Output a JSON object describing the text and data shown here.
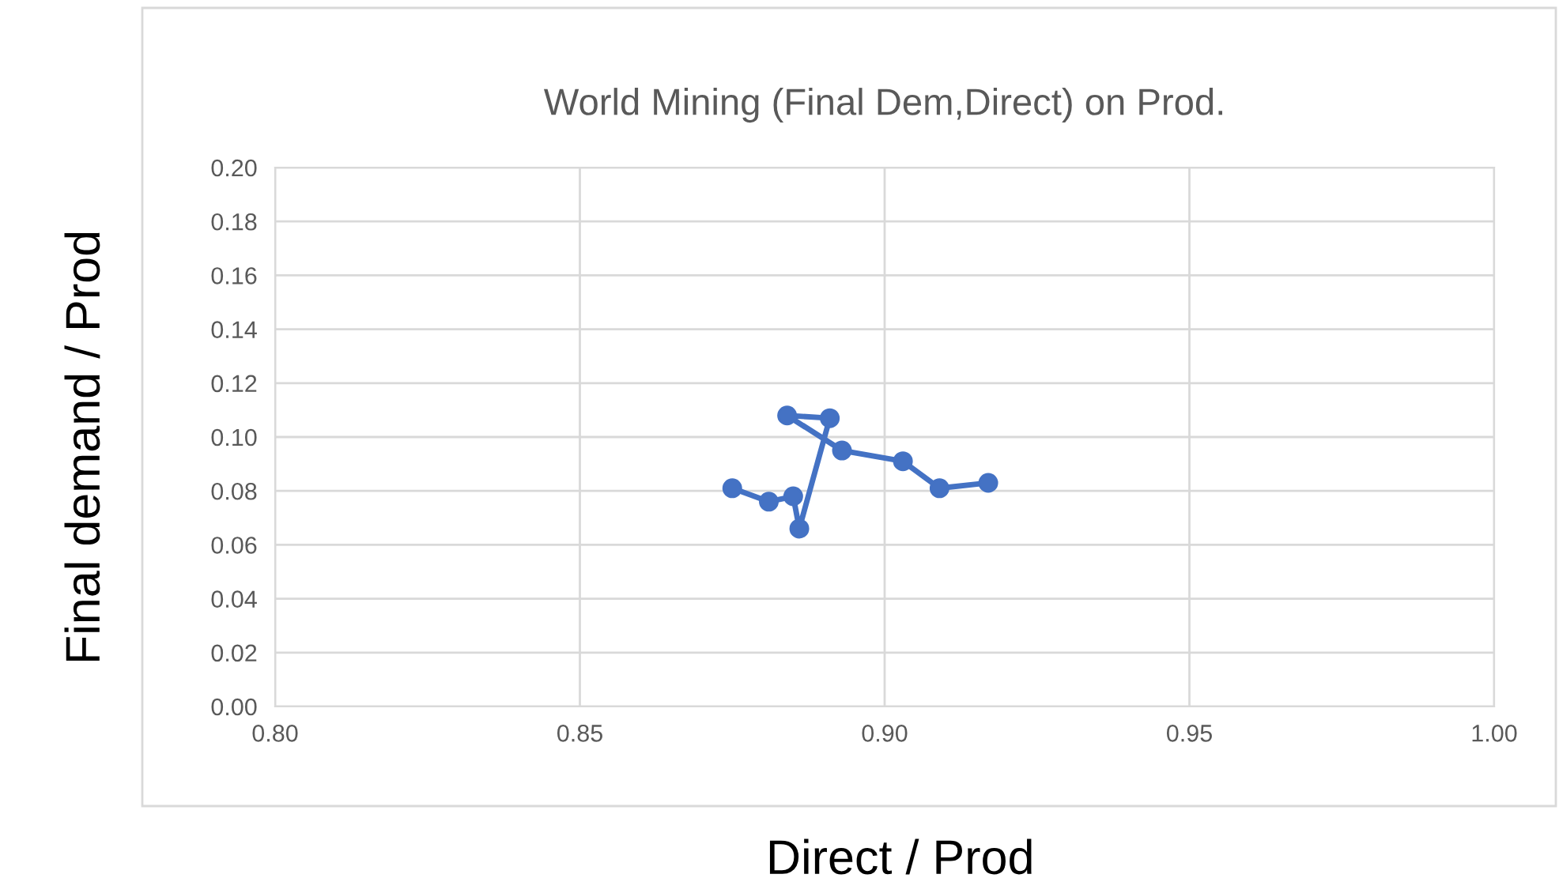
{
  "chart_data": {
    "type": "line",
    "title": "World Mining (Final Dem,Direct) on Prod.",
    "xlabel": "Direct / Prod",
    "ylabel": "Final demand / Prod",
    "x": [
      0.875,
      0.881,
      0.885,
      0.886,
      0.891,
      0.884,
      0.893,
      0.903,
      0.909,
      0.917
    ],
    "series": [
      {
        "color": "#4472c4",
        "values": [
          0.081,
          0.076,
          0.078,
          0.066,
          0.107,
          0.108,
          0.095,
          0.091,
          0.081,
          0.083
        ]
      }
    ],
    "xlim": [
      0.8,
      1.0
    ],
    "xticks": [
      {
        "value": 0.8,
        "label": "0.80"
      },
      {
        "value": 0.85,
        "label": "0.85"
      },
      {
        "value": 0.9,
        "label": "0.90"
      },
      {
        "value": 0.95,
        "label": "0.95"
      },
      {
        "value": 1.0,
        "label": "1.00"
      }
    ],
    "ylim": [
      0,
      0.2
    ],
    "yticks": [
      {
        "value": 0,
        "label": "0.00"
      },
      {
        "value": 0.02,
        "label": "0.02"
      },
      {
        "value": 0.04,
        "label": "0.04"
      },
      {
        "value": 0.06,
        "label": "0.06"
      },
      {
        "value": 0.08,
        "label": "0.08"
      },
      {
        "value": 0.1,
        "label": "0.10"
      },
      {
        "value": 0.12,
        "label": "0.12"
      },
      {
        "value": 0.14,
        "label": "0.14"
      },
      {
        "value": 0.16,
        "label": "0.16"
      },
      {
        "value": 0.18,
        "label": "0.18"
      },
      {
        "value": 0.2,
        "label": "0.20"
      }
    ],
    "grid": true,
    "marker": "circle",
    "line_style": "solid"
  }
}
